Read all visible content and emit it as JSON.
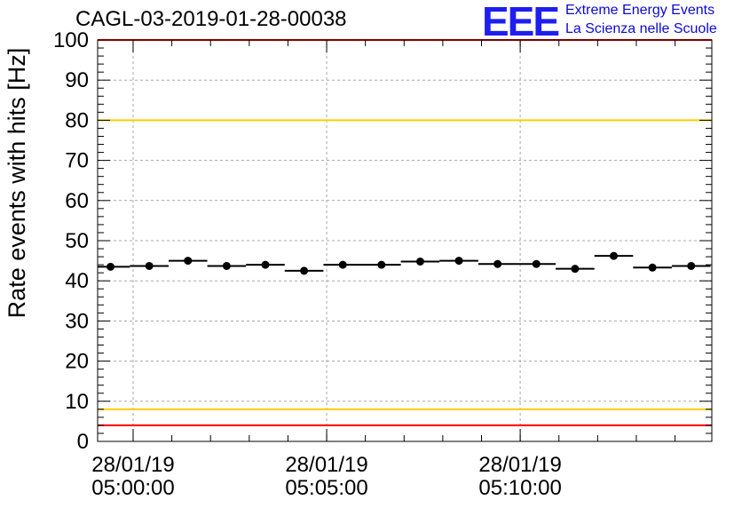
{
  "title": "CAGL-03-2019-01-28-00038",
  "logo": {
    "mark": "EEE",
    "line1": "Extreme Energy Events",
    "line2": "La Scienza nelle Scuole"
  },
  "colors": {
    "red_line": "#ff0000",
    "yellow_line": "#ffcc00",
    "points": "#000000",
    "logo_blue": "#1e1ef0"
  },
  "chart_data": {
    "type": "scatter",
    "title": "CAGL-03-2019-01-28-00038",
    "ylabel": "Rate events with hits [Hz]",
    "xlabel": "",
    "ylim": [
      0,
      100
    ],
    "xlim": [
      "04:59:05",
      "05:14:57"
    ],
    "grid": true,
    "y_ticks": [
      "0",
      "10",
      "20",
      "30",
      "40",
      "50",
      "60",
      "70",
      "80",
      "90",
      "100"
    ],
    "x_ticks": [
      {
        "date": "28/01/19",
        "time": "05:00:00"
      },
      {
        "date": "28/01/19",
        "time": "05:05:00"
      },
      {
        "date": "28/01/19",
        "time": "05:10:00"
      }
    ],
    "reference_lines": [
      {
        "y": 100,
        "color": "red"
      },
      {
        "y": 80,
        "color": "yellow"
      },
      {
        "y": 8,
        "color": "yellow"
      },
      {
        "y": 4,
        "color": "red"
      }
    ],
    "series": [
      {
        "points": [
          {
            "t": "04:59:25",
            "y": 43.5
          },
          {
            "t": "05:00:25",
            "y": 43.7
          },
          {
            "t": "05:01:25",
            "y": 45.0
          },
          {
            "t": "05:02:25",
            "y": 43.7
          },
          {
            "t": "05:03:25",
            "y": 44.0
          },
          {
            "t": "05:04:25",
            "y": 42.5
          },
          {
            "t": "05:05:25",
            "y": 44.0
          },
          {
            "t": "05:06:25",
            "y": 44.0
          },
          {
            "t": "05:07:25",
            "y": 44.8
          },
          {
            "t": "05:08:25",
            "y": 45.0
          },
          {
            "t": "05:09:25",
            "y": 44.2
          },
          {
            "t": "05:10:25",
            "y": 44.2
          },
          {
            "t": "05:11:25",
            "y": 43.0
          },
          {
            "t": "05:12:25",
            "y": 46.2
          },
          {
            "t": "05:13:25",
            "y": 43.3
          },
          {
            "t": "05:14:25",
            "y": 43.7
          }
        ],
        "bin_half_width_s": 30
      }
    ]
  }
}
